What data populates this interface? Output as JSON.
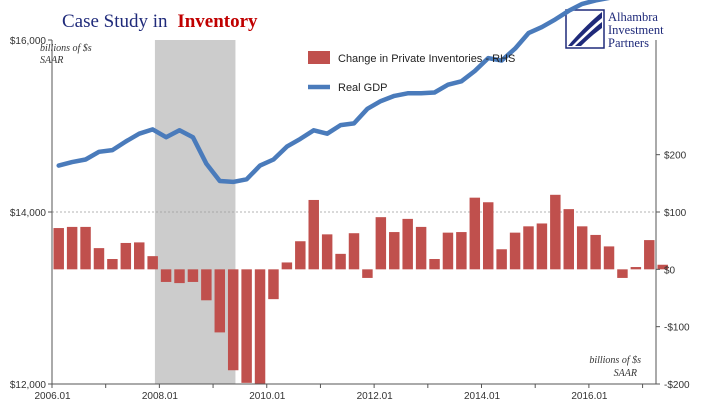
{
  "title": {
    "prefix": "Case Study in",
    "highlight": "Inventory"
  },
  "logo": {
    "lines": [
      "Alhambra",
      "Investment",
      "Partners"
    ]
  },
  "colors": {
    "gdp_line": "#4a7bbb",
    "inventory_bars": "#c0504d",
    "recession_shade": "#cccccc",
    "title_dark": "#1f2a7a",
    "title_accent": "#c00000"
  },
  "chart_data": {
    "type": "bar+line",
    "recession_shading": {
      "start": 2007.917,
      "end": 2009.417
    },
    "x_range": [
      2006.0,
      2017.25
    ],
    "x_tick_labels": [
      "2006.01",
      "2008.01",
      "2010.01",
      "2012.01",
      "2014.01",
      "2016.01"
    ],
    "left_axis": {
      "unit_label_lines": [
        "billions of $s",
        "SAAR"
      ],
      "range": [
        12000,
        16000
      ],
      "tick_values": [
        12000,
        14000,
        16000
      ],
      "tick_labels": [
        "$12,000",
        "$14,000",
        "$16,000"
      ]
    },
    "right_axis": {
      "unit_label_lines": [
        "billions of $s",
        "SAAR"
      ],
      "range": [
        -200,
        400
      ],
      "tick_values": [
        -200,
        -100,
        0,
        100,
        200
      ],
      "tick_labels": [
        "-$200",
        "-$100",
        "$0",
        "$100",
        "$200"
      ]
    },
    "series": [
      {
        "name": "Change in Private Inventories - RHS",
        "type": "bar",
        "axis": "right",
        "start": 2006.0,
        "step": 0.25,
        "values": [
          72,
          74,
          74,
          37,
          18,
          46,
          47,
          23,
          -22,
          -24,
          -22,
          -54,
          -110,
          -176,
          -198,
          -200,
          -52,
          12,
          49,
          121,
          61,
          27,
          63,
          -15,
          91,
          65,
          88,
          74,
          18,
          64,
          65,
          125,
          117,
          35,
          64,
          75,
          80,
          130,
          105,
          75,
          60,
          40,
          -15,
          4,
          51,
          8
        ]
      },
      {
        "name": "Real GDP",
        "type": "line",
        "axis": "left",
        "start": 2006.0,
        "step": 0.25,
        "values": [
          14540,
          14580,
          14610,
          14700,
          14720,
          14820,
          14910,
          14960,
          14870,
          14950,
          14870,
          14560,
          14360,
          14350,
          14380,
          14540,
          14610,
          14760,
          14850,
          14950,
          14910,
          15010,
          15030,
          15200,
          15290,
          15350,
          15380,
          15380,
          15390,
          15480,
          15520,
          15640,
          15790,
          15760,
          15900,
          16080,
          16150,
          16240,
          16340,
          16420,
          16460,
          16490,
          16550,
          16690,
          16760,
          16790
        ]
      }
    ]
  }
}
